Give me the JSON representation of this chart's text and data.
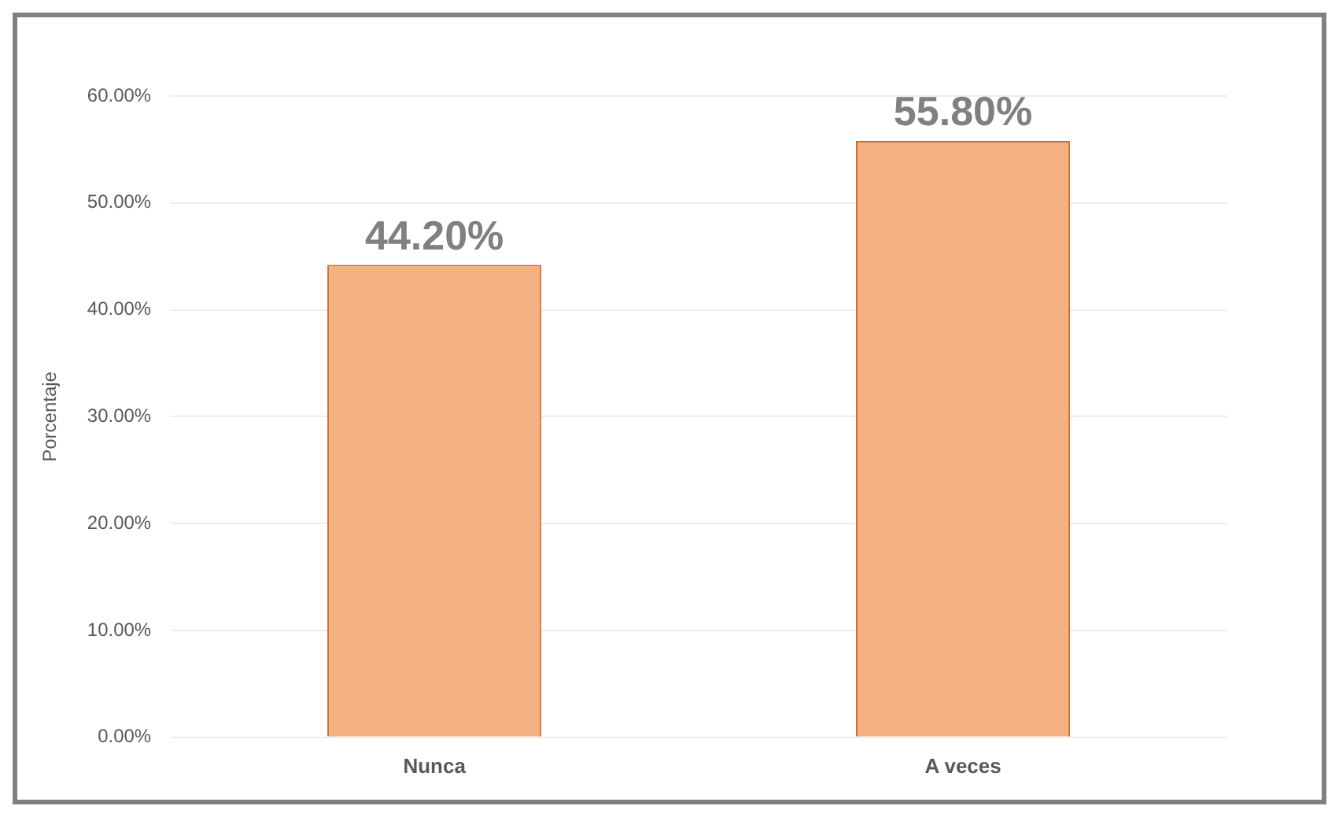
{
  "chart_data": {
    "type": "bar",
    "ylabel": "Porcentaje",
    "categories": [
      "Nunca",
      "A veces"
    ],
    "values": [
      44.2,
      55.8
    ],
    "color": "#f4b183",
    "value_labels": [
      "44.20%",
      "55.80%"
    ],
    "ylim": [
      0,
      60
    ],
    "yticks": [
      {
        "value": 0,
        "label": "0.00%"
      },
      {
        "value": 10,
        "label": "10.00%"
      },
      {
        "value": 20,
        "label": "20.00%"
      },
      {
        "value": 30,
        "label": "30.00%"
      },
      {
        "value": 40,
        "label": "40.00%"
      },
      {
        "value": 50,
        "label": "50.00%"
      },
      {
        "value": 60,
        "label": "60.00%"
      }
    ],
    "grid": "y",
    "legend": false
  }
}
